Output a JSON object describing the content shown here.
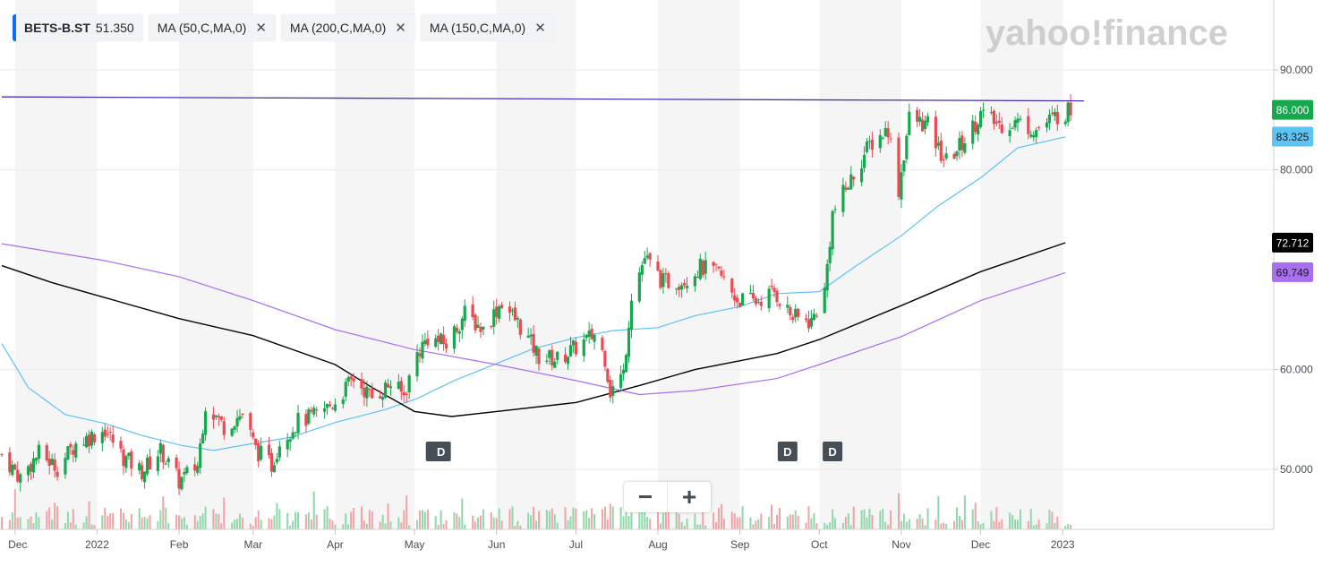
{
  "legend": {
    "symbol": {
      "name": "BETS-B.ST",
      "price": "51.350"
    },
    "indicators": [
      {
        "label": "MA (50,C,MA,0)",
        "color": "#5cc3f3"
      },
      {
        "label": "MA (200,C,MA,0)",
        "color": "#000000"
      },
      {
        "label": "MA (150,C,MA,0)",
        "color": "#a86ff0"
      }
    ]
  },
  "brand": {
    "text": "yahoo!finance"
  },
  "zoom": {
    "minus": "−",
    "plus": "+"
  },
  "colors": {
    "up": "#17a74e",
    "down": "#ea4a52",
    "trendline": "#4b2fb3",
    "ma50": "#5cc3f3",
    "ma200": "#000000",
    "ma150": "#a86ff0",
    "band": "#f5f5f5"
  },
  "chart_data": {
    "type": "candlestick",
    "ylim": [
      44,
      97
    ],
    "y_ticks": [
      "90.000",
      "80.000",
      "60.000",
      "50.000"
    ],
    "x_ticks": [
      "Dec",
      "2022",
      "Feb",
      "Mar",
      "Apr",
      "May",
      "Jun",
      "Jul",
      "Aug",
      "Sep",
      "Oct",
      "Nov",
      "Dec",
      "2023"
    ],
    "price_badges": [
      {
        "value": "86.000",
        "color": "#17a74e",
        "text_color": "#ffffff"
      },
      {
        "value": "83.325",
        "color": "#5cc3f3",
        "text_color": "#1a1a1a"
      },
      {
        "value": "72.712",
        "color": "#000000",
        "text_color": "#ffffff"
      },
      {
        "value": "69.749",
        "color": "#a86ff0",
        "text_color": "#1a1a1a"
      }
    ],
    "trendline": {
      "from": [
        "2021-11-26",
        87.3
      ],
      "to": [
        "2023-01-09",
        86.9
      ]
    },
    "dividend_markers": [
      {
        "label": "D",
        "date": "2022-05-09"
      },
      {
        "label": "D",
        "date": "2022-05-11"
      },
      {
        "label": "D",
        "date": "2022-09-19"
      },
      {
        "label": "D",
        "date": "2022-10-06"
      }
    ],
    "ma_series": [
      {
        "name": "MA (50,C,MA,0)",
        "color": "#5cc3f3",
        "points": [
          [
            "2021-11-26",
            62.6
          ],
          [
            "2021-12-06",
            58.2
          ],
          [
            "2021-12-20",
            55.5
          ],
          [
            "2022-01-04",
            54.6
          ],
          [
            "2022-01-18",
            53.4
          ],
          [
            "2022-02-02",
            52.4
          ],
          [
            "2022-02-14",
            51.9
          ],
          [
            "2022-03-01",
            52.6
          ],
          [
            "2022-03-15",
            53.2
          ],
          [
            "2022-04-01",
            54.7
          ],
          [
            "2022-04-20",
            56.0
          ],
          [
            "2022-05-02",
            57.1
          ],
          [
            "2022-05-16",
            58.9
          ],
          [
            "2022-06-01",
            60.6
          ],
          [
            "2022-06-15",
            62.1
          ],
          [
            "2022-07-01",
            63.2
          ],
          [
            "2022-07-15",
            63.9
          ],
          [
            "2022-08-01",
            64.2
          ],
          [
            "2022-08-15",
            65.4
          ],
          [
            "2022-09-01",
            66.3
          ],
          [
            "2022-09-15",
            67.6
          ],
          [
            "2022-10-01",
            67.8
          ],
          [
            "2022-10-15",
            70.4
          ],
          [
            "2022-11-01",
            73.4
          ],
          [
            "2022-11-15",
            76.4
          ],
          [
            "2022-12-01",
            79.2
          ],
          [
            "2022-12-15",
            82.2
          ],
          [
            "2023-01-02",
            83.3
          ]
        ]
      },
      {
        "name": "MA (200,C,MA,0)",
        "color": "#000000",
        "points": [
          [
            "2021-11-26",
            70.4
          ],
          [
            "2021-12-15",
            68.7
          ],
          [
            "2022-01-04",
            67.2
          ],
          [
            "2022-02-01",
            65.1
          ],
          [
            "2022-03-01",
            63.4
          ],
          [
            "2022-04-01",
            60.5
          ],
          [
            "2022-04-15",
            58.2
          ],
          [
            "2022-05-01",
            55.8
          ],
          [
            "2022-05-15",
            55.3
          ],
          [
            "2022-06-01",
            55.8
          ],
          [
            "2022-07-01",
            56.7
          ],
          [
            "2022-07-25",
            58.4
          ],
          [
            "2022-08-15",
            60.0
          ],
          [
            "2022-09-15",
            61.6
          ],
          [
            "2022-10-01",
            63.0
          ],
          [
            "2022-11-01",
            66.4
          ],
          [
            "2022-12-01",
            69.8
          ],
          [
            "2023-01-02",
            72.7
          ]
        ]
      },
      {
        "name": "MA (150,C,MA,0)",
        "color": "#a86ff0",
        "points": [
          [
            "2021-11-26",
            72.6
          ],
          [
            "2022-01-04",
            70.9
          ],
          [
            "2022-02-01",
            69.3
          ],
          [
            "2022-03-01",
            66.9
          ],
          [
            "2022-04-01",
            64.0
          ],
          [
            "2022-05-01",
            62.0
          ],
          [
            "2022-06-01",
            60.5
          ],
          [
            "2022-07-01",
            58.9
          ],
          [
            "2022-07-25",
            57.5
          ],
          [
            "2022-08-15",
            57.9
          ],
          [
            "2022-09-15",
            59.1
          ],
          [
            "2022-10-01",
            60.5
          ],
          [
            "2022-11-01",
            63.3
          ],
          [
            "2022-12-01",
            66.9
          ],
          [
            "2023-01-02",
            69.7
          ]
        ]
      }
    ],
    "anchors": [
      [
        "2021-11-26",
        51.5
      ],
      [
        "2021-12-03",
        49.2
      ],
      [
        "2021-12-10",
        51.6
      ],
      [
        "2021-12-17",
        50.2
      ],
      [
        "2021-12-24",
        52.6
      ],
      [
        "2022-01-04",
        54.0
      ],
      [
        "2022-01-11",
        51.2
      ],
      [
        "2022-01-18",
        49.8
      ],
      [
        "2022-01-25",
        51.9
      ],
      [
        "2022-02-01",
        48.8
      ],
      [
        "2022-02-08",
        50.4
      ],
      [
        "2022-02-11",
        56.6
      ],
      [
        "2022-02-18",
        54.3
      ],
      [
        "2022-02-25",
        55.6
      ],
      [
        "2022-03-02",
        52.0
      ],
      [
        "2022-03-08",
        50.4
      ],
      [
        "2022-03-11",
        52.8
      ],
      [
        "2022-03-18",
        54.8
      ],
      [
        "2022-03-25",
        55.4
      ],
      [
        "2022-04-01",
        56.8
      ],
      [
        "2022-04-08",
        59.1
      ],
      [
        "2022-04-15",
        57.2
      ],
      [
        "2022-04-22",
        58.6
      ],
      [
        "2022-04-27",
        57.4
      ],
      [
        "2022-05-02",
        61.6
      ],
      [
        "2022-05-06",
        63.2
      ],
      [
        "2022-05-13",
        62.5
      ],
      [
        "2022-05-20",
        65.6
      ],
      [
        "2022-05-27",
        64.0
      ],
      [
        "2022-06-03",
        66.8
      ],
      [
        "2022-06-10",
        64.3
      ],
      [
        "2022-06-17",
        61.3
      ],
      [
        "2022-06-24",
        61.0
      ],
      [
        "2022-07-01",
        62.2
      ],
      [
        "2022-07-08",
        63.5
      ],
      [
        "2022-07-12",
        61.2
      ],
      [
        "2022-07-14",
        57.8
      ],
      [
        "2022-07-19",
        59.6
      ],
      [
        "2022-07-22",
        67.6
      ],
      [
        "2022-07-27",
        71.2
      ],
      [
        "2022-08-03",
        68.7
      ],
      [
        "2022-08-10",
        68.9
      ],
      [
        "2022-08-17",
        70.2
      ],
      [
        "2022-08-24",
        69.6
      ],
      [
        "2022-08-31",
        67.0
      ],
      [
        "2022-09-07",
        66.8
      ],
      [
        "2022-09-14",
        67.8
      ],
      [
        "2022-09-21",
        65.2
      ],
      [
        "2022-09-28",
        64.8
      ],
      [
        "2022-10-03",
        67.8
      ],
      [
        "2022-10-06",
        75.6
      ],
      [
        "2022-10-13",
        79.0
      ],
      [
        "2022-10-20",
        82.5
      ],
      [
        "2022-10-27",
        84.1
      ],
      [
        "2022-10-31",
        78.0
      ],
      [
        "2022-11-04",
        85.2
      ],
      [
        "2022-11-11",
        84.4
      ],
      [
        "2022-11-15",
        82.0
      ],
      [
        "2022-11-18",
        80.8
      ],
      [
        "2022-11-25",
        83.0
      ],
      [
        "2022-12-01",
        85.6
      ],
      [
        "2022-12-08",
        84.5
      ],
      [
        "2022-12-15",
        84.8
      ],
      [
        "2022-12-22",
        84.0
      ],
      [
        "2022-12-29",
        85.3
      ],
      [
        "2023-01-04",
        86.0
      ]
    ],
    "bands": [
      [
        "2021-12-01",
        "2021-12-31"
      ],
      [
        "2022-02-01",
        "2022-02-28"
      ],
      [
        "2022-04-01",
        "2022-04-30"
      ],
      [
        "2022-06-01",
        "2022-06-30"
      ],
      [
        "2022-08-01",
        "2022-08-31"
      ],
      [
        "2022-10-01",
        "2022-10-31"
      ],
      [
        "2022-12-01",
        "2022-12-31"
      ]
    ]
  }
}
